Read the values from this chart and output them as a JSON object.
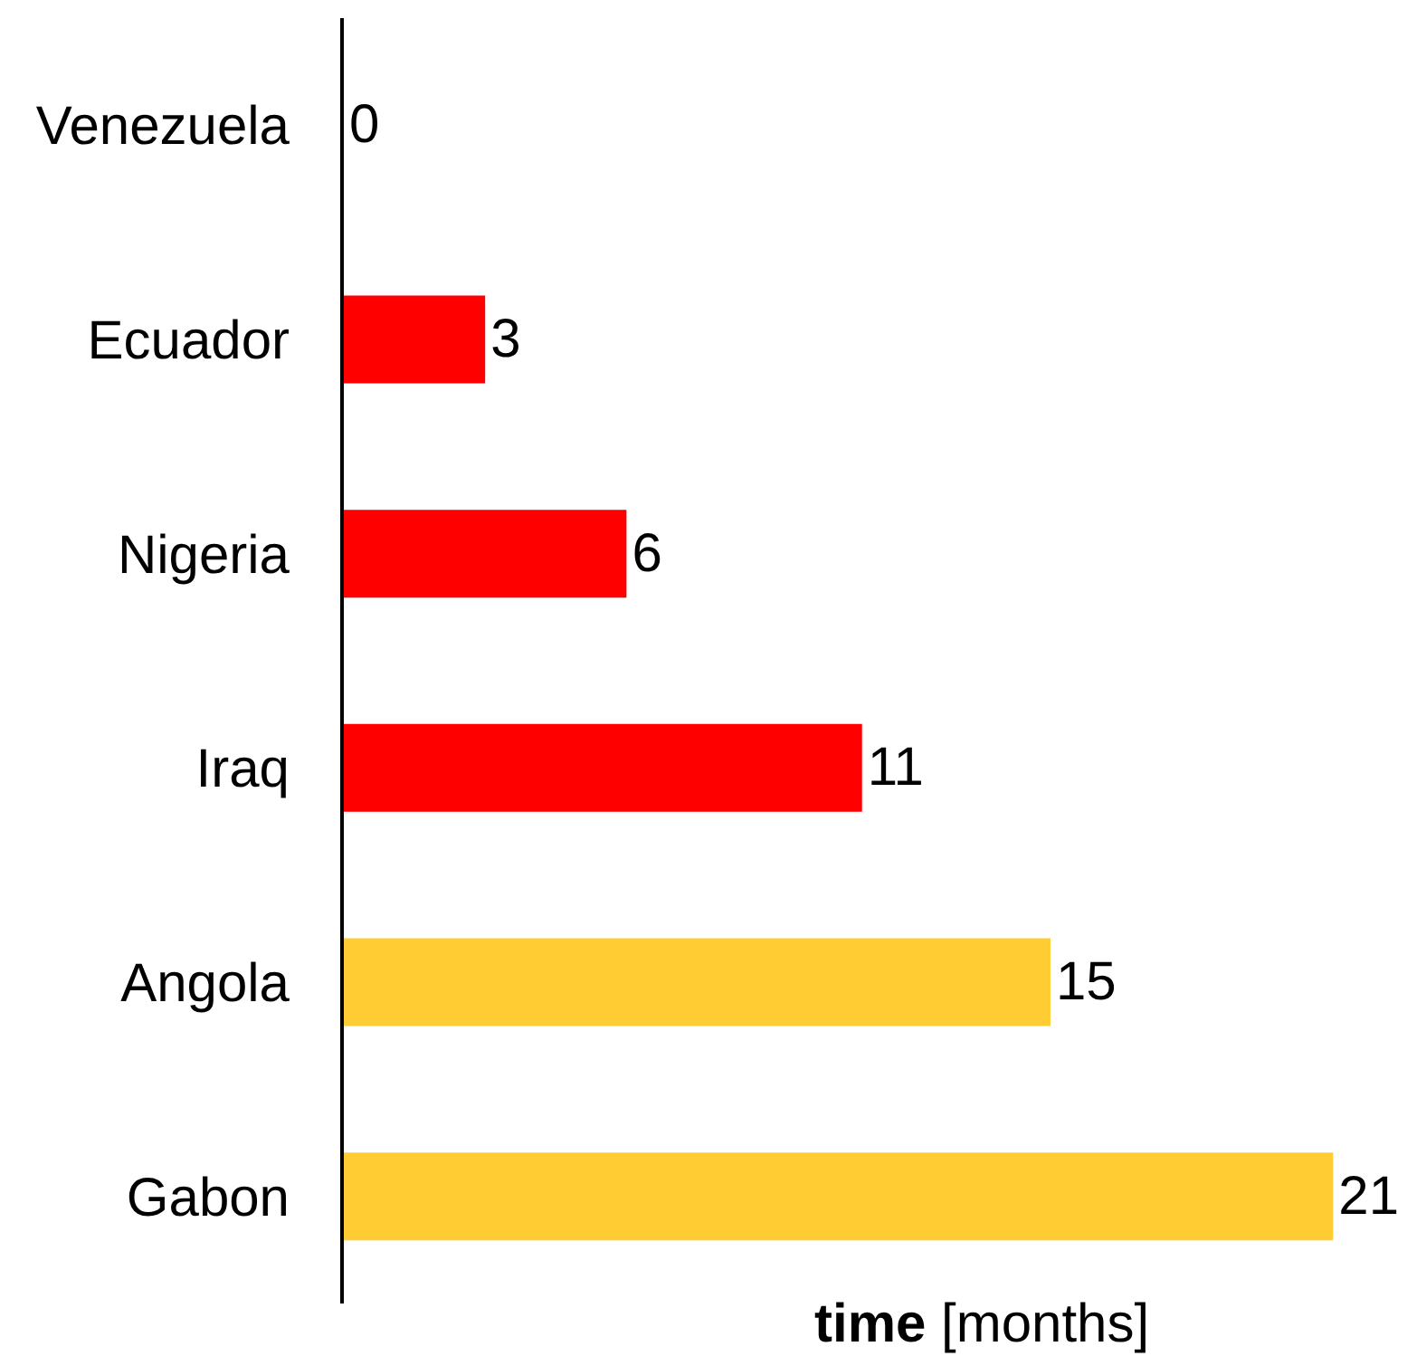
{
  "chart_data": {
    "type": "bar",
    "orientation": "horizontal",
    "categories": [
      "Venezuela",
      "Ecuador",
      "Nigeria",
      "Iraq",
      "Angola",
      "Gabon"
    ],
    "values": [
      0,
      3,
      6,
      11,
      15,
      21
    ],
    "colors": [
      "#ff0000",
      "#ff0000",
      "#ff0000",
      "#ff0000",
      "#ffcc33",
      "#ffcc33"
    ],
    "xlabel": "time [months]",
    "data_labels": true,
    "tick_labels": "y"
  }
}
